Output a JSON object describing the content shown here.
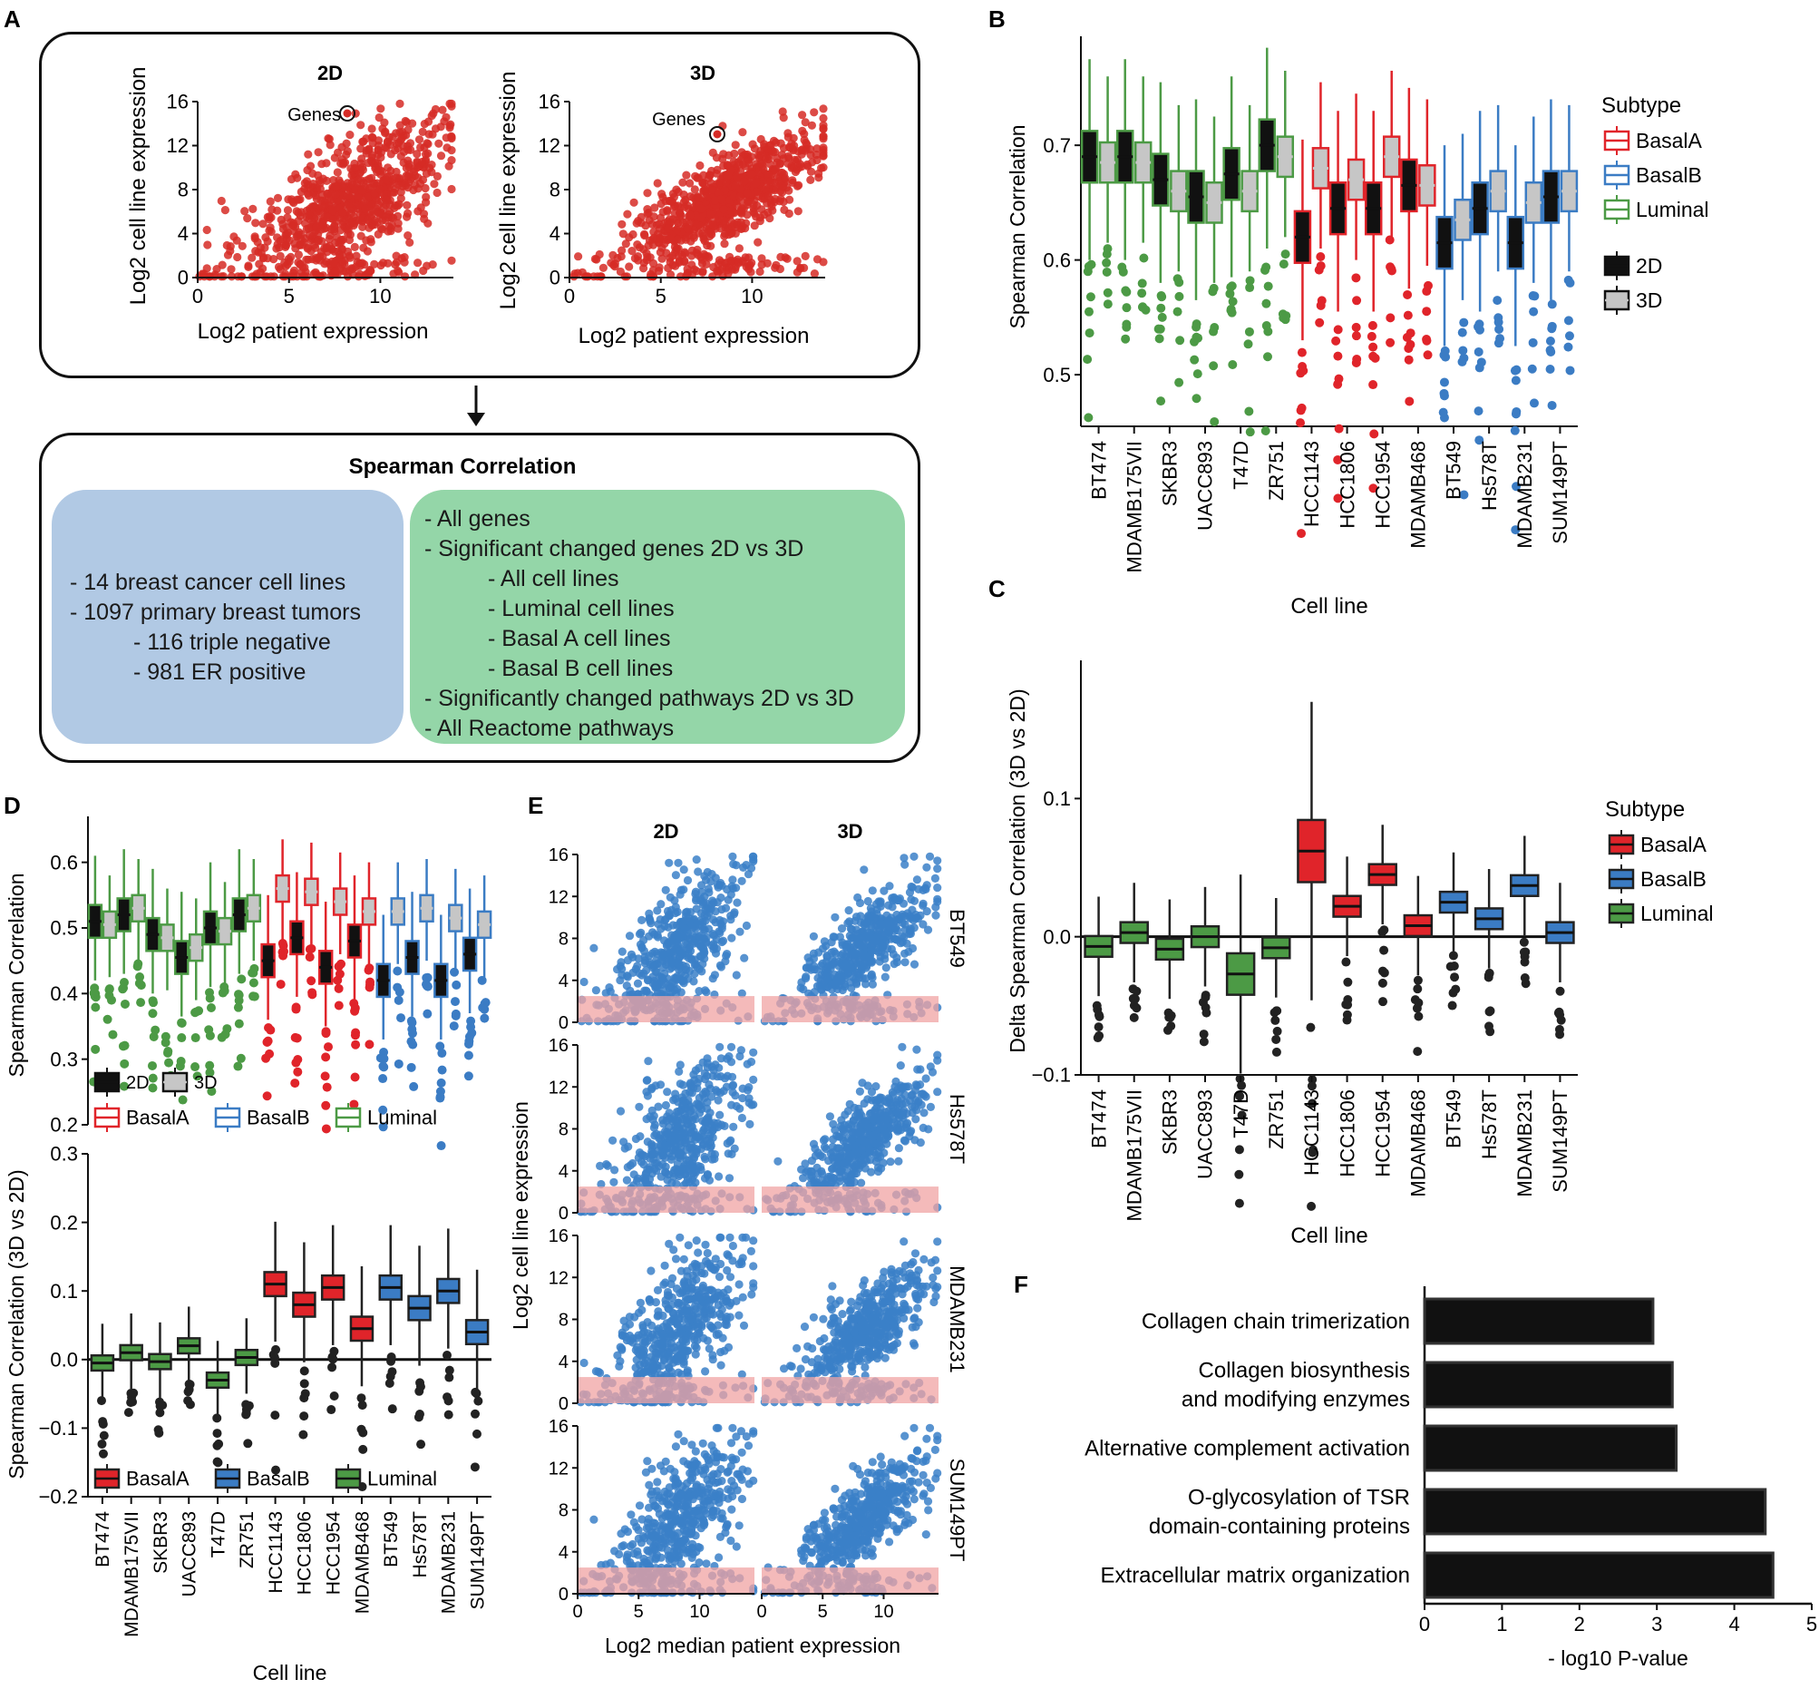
{
  "colors": {
    "basalA": "#e0242a",
    "basalB": "#3b7cc4",
    "luminal": "#4c9a45",
    "box2D": "#111111",
    "box3D": "#c6c6c6",
    "scatterRed": "#d62b26",
    "scatterBlue": "#3b80c8",
    "lowBand": "#f0a3a3",
    "panelLeft": "#b1c9e4",
    "panelRight": "#94d6a8"
  },
  "panelA": {
    "letter": "A",
    "scatter2D": {
      "title": "2D",
      "annotation": "Genes"
    },
    "scatter3D": {
      "title": "3D",
      "annotation": "Genes"
    },
    "xlabel": "Log2 patient expression",
    "ylabel": "Log2 cell line expression",
    "xticks": [
      "0",
      "5",
      "10"
    ],
    "yticks": [
      "0",
      "4",
      "8",
      "12",
      "16"
    ],
    "summaryTitle": "Spearman Correlation",
    "leftItems": [
      {
        "text": "- 14 breast cancer cell lines",
        "level": 1
      },
      {
        "text": "- 1097 primary breast tumors",
        "level": 1
      },
      {
        "text": "- 116 triple negative",
        "level": 2
      },
      {
        "text": "- 981 ER positive",
        "level": 2
      }
    ],
    "rightItems": [
      {
        "text": "- All genes",
        "level": 1
      },
      {
        "text": "- Significant changed genes 2D vs 3D",
        "level": 1
      },
      {
        "text": "- All cell lines",
        "level": 2
      },
      {
        "text": "- Luminal cell lines",
        "level": 2
      },
      {
        "text": "- Basal A cell lines",
        "level": 2
      },
      {
        "text": "- Basal B cell lines",
        "level": 2
      },
      {
        "text": "- Significantly changed pathways 2D vs 3D",
        "level": 1
      },
      {
        "text": "- All Reactome pathways",
        "level": 1
      }
    ]
  },
  "chart_data": [
    {
      "panel": "B",
      "type": "box",
      "xlabel": "Cell line",
      "ylabel": "Spearman Correlation",
      "ylim": [
        0.455,
        0.795
      ],
      "yticks": [
        "0.5",
        "0.6",
        "0.7"
      ],
      "categories": [
        "BT474",
        "MDAMB175VII",
        "SKBR3",
        "UACC893",
        "T47D",
        "ZR751",
        "HCC1143",
        "HCC1806",
        "HCC1954",
        "MDAMB468",
        "BT549",
        "Hs578T",
        "MDAMB231",
        "SUM149PT"
      ],
      "subtypes": [
        "Luminal",
        "Luminal",
        "Luminal",
        "Luminal",
        "Luminal",
        "Luminal",
        "BasalA",
        "BasalA",
        "BasalA",
        "BasalA",
        "BasalB",
        "BasalB",
        "BasalB",
        "BasalB"
      ],
      "median_2D": [
        0.69,
        0.69,
        0.67,
        0.655,
        0.675,
        0.7,
        0.62,
        0.645,
        0.645,
        0.665,
        0.615,
        0.645,
        0.615,
        0.655
      ],
      "median_3D": [
        0.685,
        0.685,
        0.66,
        0.65,
        0.66,
        0.69,
        0.68,
        0.67,
        0.69,
        0.665,
        0.635,
        0.66,
        0.65,
        0.66
      ],
      "legend": {
        "title": "Subtype",
        "subtypes": [
          "BasalA",
          "BasalB",
          "Luminal"
        ],
        "conditions": [
          "2D",
          "3D"
        ]
      }
    },
    {
      "panel": "C",
      "type": "box",
      "xlabel": "Cell line",
      "ylabel": "Delta Spearman Correlation (3D vs 2D)",
      "ylim": [
        -0.1,
        0.2
      ],
      "yticks": [
        "−0.1",
        "0.0",
        "0.1"
      ],
      "categories": [
        "BT474",
        "MDAMB175VII",
        "SKBR3",
        "UACC893",
        "T47D",
        "ZR751",
        "HCC1143",
        "HCC1806",
        "HCC1954",
        "MDAMB468",
        "BT549",
        "Hs578T",
        "MDAMB231",
        "SUM149PT"
      ],
      "median": [
        -0.007,
        0.003,
        -0.009,
        0.0,
        -0.027,
        -0.008,
        0.062,
        0.022,
        0.045,
        0.008,
        0.025,
        0.013,
        0.037,
        0.003
      ],
      "legend": {
        "title": "Subtype",
        "subtypes": [
          "BasalA",
          "BasalB",
          "Luminal"
        ]
      }
    },
    {
      "panel": "D-top",
      "type": "box",
      "ylabel": "Spearman Correlation",
      "ylim": [
        0.2,
        0.67
      ],
      "yticks": [
        "0.2",
        "0.3",
        "0.4",
        "0.5",
        "0.6"
      ],
      "categories": [
        "BT474",
        "MDAMB175VII",
        "SKBR3",
        "UACC893",
        "T47D",
        "ZR751",
        "HCC1143",
        "HCC1806",
        "HCC1954",
        "MDAMB468",
        "BT549",
        "Hs578T",
        "MDAMB231",
        "SUM149PT"
      ],
      "median_2D": [
        0.51,
        0.52,
        0.49,
        0.455,
        0.5,
        0.52,
        0.45,
        0.485,
        0.44,
        0.48,
        0.42,
        0.455,
        0.42,
        0.46
      ],
      "median_3D": [
        0.505,
        0.53,
        0.485,
        0.47,
        0.495,
        0.53,
        0.56,
        0.555,
        0.54,
        0.525,
        0.525,
        0.53,
        0.515,
        0.505
      ],
      "legend": {
        "conditions": [
          "2D",
          "3D"
        ],
        "subtypes": [
          "BasalA",
          "BasalB",
          "Luminal"
        ]
      }
    },
    {
      "panel": "D-bottom",
      "type": "box",
      "xlabel": "Cell line",
      "ylabel": "Spearman Correlation (3D vs 2D)",
      "ylim": [
        -0.2,
        0.3
      ],
      "yticks": [
        "−0.2",
        "−0.1",
        "0.0",
        "0.1",
        "0.2",
        "0.3"
      ],
      "categories": [
        "BT474",
        "MDAMB175VII",
        "SKBR3",
        "UACC893",
        "T47D",
        "ZR751",
        "HCC1143",
        "HCC1806",
        "HCC1954",
        "MDAMB468",
        "BT549",
        "Hs578T",
        "MDAMB231",
        "SUM149PT"
      ],
      "median": [
        -0.005,
        0.01,
        -0.003,
        0.02,
        -0.03,
        0.003,
        0.11,
        0.08,
        0.105,
        0.045,
        0.105,
        0.075,
        0.1,
        0.04
      ],
      "legend": {
        "subtypes": [
          "BasalA",
          "BasalB",
          "Luminal"
        ]
      }
    },
    {
      "panel": "E",
      "type": "scatter",
      "columns": [
        "2D",
        "3D"
      ],
      "rows": [
        "BT549",
        "Hs578T",
        "MDAMB231",
        "SUM149PT"
      ],
      "xlabel": "Log2 median patient expression",
      "ylabel": "Log2 cell line expression",
      "xticks": [
        "0",
        "5",
        "10"
      ],
      "yticks": [
        "0",
        "4",
        "8",
        "12",
        "16"
      ],
      "highlight_band_y": [
        0,
        2.5
      ]
    },
    {
      "panel": "F",
      "type": "bar",
      "orientation": "horizontal",
      "xlabel": "- log10 P-value",
      "xlim": [
        0,
        5
      ],
      "xticks": [
        "0",
        "1",
        "2",
        "3",
        "4",
        "5"
      ],
      "categories": [
        "Collagen chain trimerization",
        "Collagen biosynthesis and modifying enzymes",
        "Alternative complement activation",
        "O-glycosylation of TSR domain-containing proteins",
        "Extracellular matrix organization"
      ],
      "category_lines": [
        [
          "Collagen chain trimerization"
        ],
        [
          "Collagen biosynthesis",
          "and modifying enzymes"
        ],
        [
          "Alternative complement activation"
        ],
        [
          "O-glycosylation of TSR",
          "domain-containing proteins"
        ],
        [
          "Extracellular matrix organization"
        ]
      ],
      "values": [
        2.95,
        3.2,
        3.25,
        4.4,
        4.5
      ]
    }
  ],
  "letters": {
    "B": "B",
    "C": "C",
    "D": "D",
    "E": "E",
    "F": "F"
  }
}
